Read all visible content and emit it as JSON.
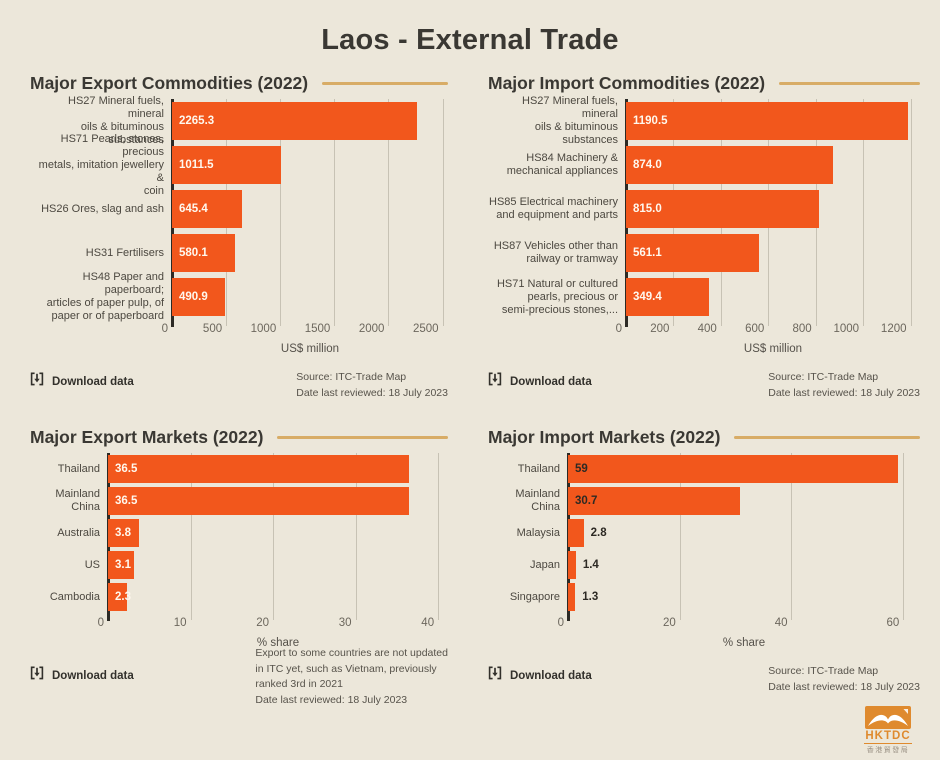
{
  "page_title": "Laos - External Trade",
  "colors": {
    "background": "#ECE7DA",
    "bar": "#F2571C",
    "accent_line": "#D8AC66",
    "axis_line": "#2C2A25",
    "logo_orange": "#DF8A2E"
  },
  "chart_data": [
    {
      "type": "bar",
      "title": "Major Export Commodities (2022)",
      "xlabel": "US$ million",
      "orientation": "horizontal",
      "grid": true,
      "categories": [
        "HS27 Mineral fuels, mineral\noils & bituminous substances",
        "HS71 Pearls, stones, precious\nmetals, imitation jewellery &\ncoin",
        "HS26 Ores, slag and ash",
        "HS31 Fertilisers",
        "HS48 Paper and paperboard;\narticles of paper pulp, of\npaper or of paperboard"
      ],
      "values": [
        2265.3,
        1011.5,
        645.4,
        580.1,
        490.9
      ],
      "value_labels": [
        "2265.3",
        "1011.5",
        "645.4",
        "580.1",
        "490.9"
      ],
      "ticks": [
        0,
        500,
        1000,
        1500,
        2000,
        2500
      ],
      "xmax": 2550,
      "value_label_style": "light",
      "download_label": "Download data",
      "notes": [
        "Source: ITC-Trade Map",
        "Date last reviewed: 18 July 2023"
      ]
    },
    {
      "type": "bar",
      "title": "Major Import Commodities (2022)",
      "xlabel": "US$ million",
      "orientation": "horizontal",
      "grid": true,
      "categories": [
        "HS27 Mineral fuels, mineral\noils & bituminous substances",
        "HS84 Machinery &\nmechanical appliances",
        "HS85 Electrical machinery\nand equipment and parts",
        "HS87 Vehicles other than\nrailway or tramway",
        "HS71 Natural or cultured\npearls, precious or\nsemi-precious stones,..."
      ],
      "values": [
        1190.5,
        874.0,
        815.0,
        561.1,
        349.4
      ],
      "value_labels": [
        "1190.5",
        "874.0",
        "815.0",
        "561.1",
        "349.4"
      ],
      "ticks": [
        0,
        200,
        400,
        600,
        800,
        1000,
        1200
      ],
      "xmax": 1240,
      "value_label_style": "light",
      "download_label": "Download data",
      "notes": [
        "Source: ITC-Trade Map",
        "Date last reviewed: 18 July 2023"
      ]
    },
    {
      "type": "bar",
      "title": "Major Export Markets (2022)",
      "xlabel": "% share",
      "orientation": "horizontal",
      "grid": true,
      "categories": [
        "Thailand",
        "Mainland China",
        "Australia",
        "US",
        "Cambodia"
      ],
      "values": [
        36.5,
        36.5,
        3.8,
        3.1,
        2.3
      ],
      "value_labels": [
        "36.5",
        "36.5",
        "3.8",
        "3.1",
        "2.3"
      ],
      "ticks": [
        0,
        10,
        20,
        30,
        40
      ],
      "xmax": 41.2,
      "value_label_style": "light",
      "download_label": "Download data",
      "notes": [
        "Export to some countries are not updated\nin ITC yet, such as Vietnam, previously\nranked 3rd in 2021",
        "Date last reviewed: 18 July 2023"
      ]
    },
    {
      "type": "bar",
      "title": "Major Import Markets (2022)",
      "xlabel": "% share",
      "orientation": "horizontal",
      "grid": true,
      "categories": [
        "Thailand",
        "Mainland China",
        "Malaysia",
        "Japan",
        "Singapore"
      ],
      "values": [
        59,
        30.7,
        2.8,
        1.4,
        1.3
      ],
      "value_labels": [
        "59",
        "30.7",
        "2.8",
        "1.4",
        "1.3"
      ],
      "ticks": [
        0,
        20,
        40,
        60
      ],
      "xmax": 63,
      "value_label_style": "dark",
      "download_label": "Download data",
      "notes": [
        "Source: ITC-Trade Map",
        "Date last reviewed: 18 July 2023"
      ]
    }
  ],
  "logo": {
    "text": "HKTDC",
    "subtext": "香港貿發局"
  }
}
